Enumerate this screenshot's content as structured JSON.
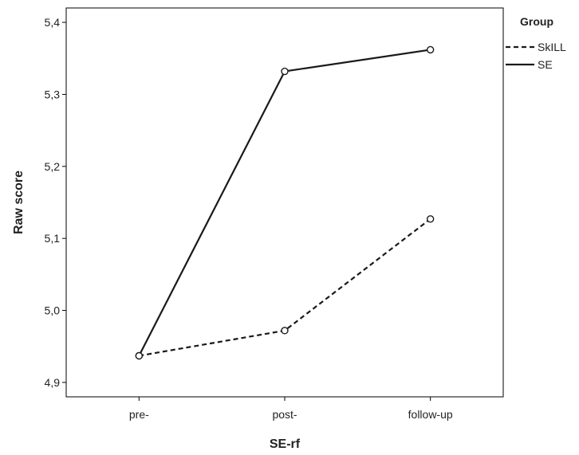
{
  "chart_data": {
    "type": "line",
    "xlabel": "SE-rf",
    "ylabel": "Raw score",
    "categories": [
      "pre-",
      "post-",
      "follow-up"
    ],
    "ylim": [
      4.88,
      5.42
    ],
    "yticks": [
      4.9,
      5.0,
      5.1,
      5.2,
      5.3,
      5.4
    ],
    "ytick_labels": [
      "4,9",
      "5,0",
      "5,1",
      "5,2",
      "5,3",
      "5,4"
    ],
    "grid": false,
    "legend": {
      "title": "Group",
      "placement": "right-top"
    },
    "series": [
      {
        "name": "SkILL",
        "line_style": "dashed",
        "color": "#1a1a1a",
        "values": [
          4.937,
          4.972,
          5.127
        ]
      },
      {
        "name": "SE",
        "line_style": "solid",
        "color": "#1a1a1a",
        "values": [
          4.937,
          5.332,
          5.362
        ]
      }
    ]
  }
}
